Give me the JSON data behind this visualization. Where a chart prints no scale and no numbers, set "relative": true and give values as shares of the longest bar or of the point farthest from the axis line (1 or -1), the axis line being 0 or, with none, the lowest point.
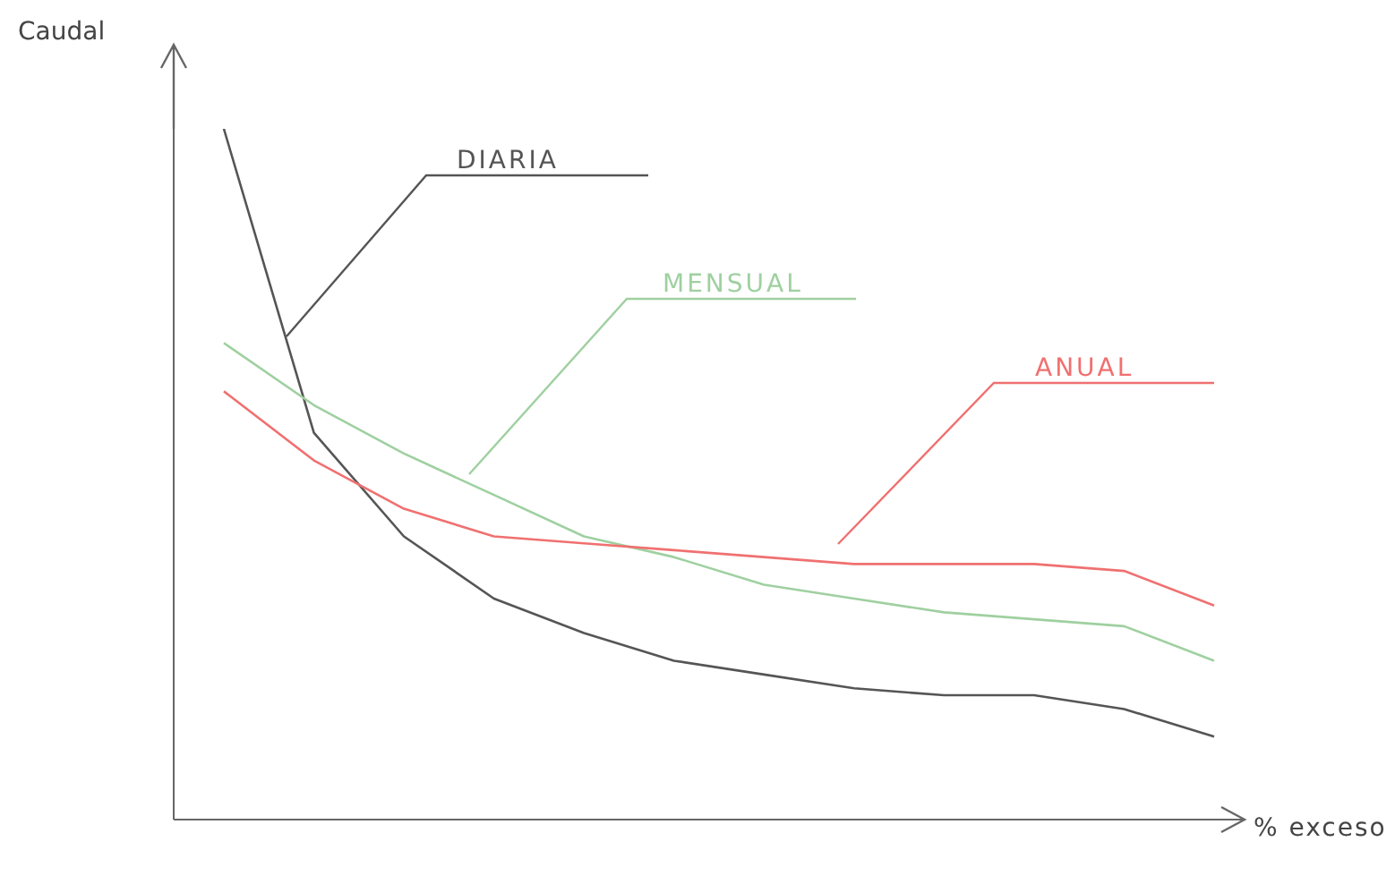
{
  "chart_data": {
    "type": "line",
    "relative": true,
    "xlabel": "% exceso",
    "ylabel": "Caudal",
    "marker": "none",
    "categories": [
      null,
      null,
      null,
      null,
      null,
      null,
      null,
      null,
      null,
      null,
      null,
      null
    ],
    "series": [
      {
        "name": "DIARIA",
        "color": "#555555",
        "values": [
          1,
          0.56,
          0.41,
          0.32,
          0.27,
          0.23,
          0.21,
          0.19,
          0.18,
          0.18,
          0.16,
          0.12
        ]
      },
      {
        "name": "MENSUAL",
        "color": "#9fd0a0",
        "values": [
          0.69,
          0.6,
          0.53,
          0.47,
          0.41,
          0.38,
          0.34,
          0.32,
          0.3,
          0.29,
          0.28,
          0.23
        ]
      },
      {
        "name": "ANUAL",
        "color": "#f07070",
        "values": [
          0.62,
          0.52,
          0.45,
          0.41,
          0.4,
          0.39,
          0.38,
          0.37,
          0.37,
          0.37,
          0.36,
          0.31
        ]
      }
    ]
  }
}
